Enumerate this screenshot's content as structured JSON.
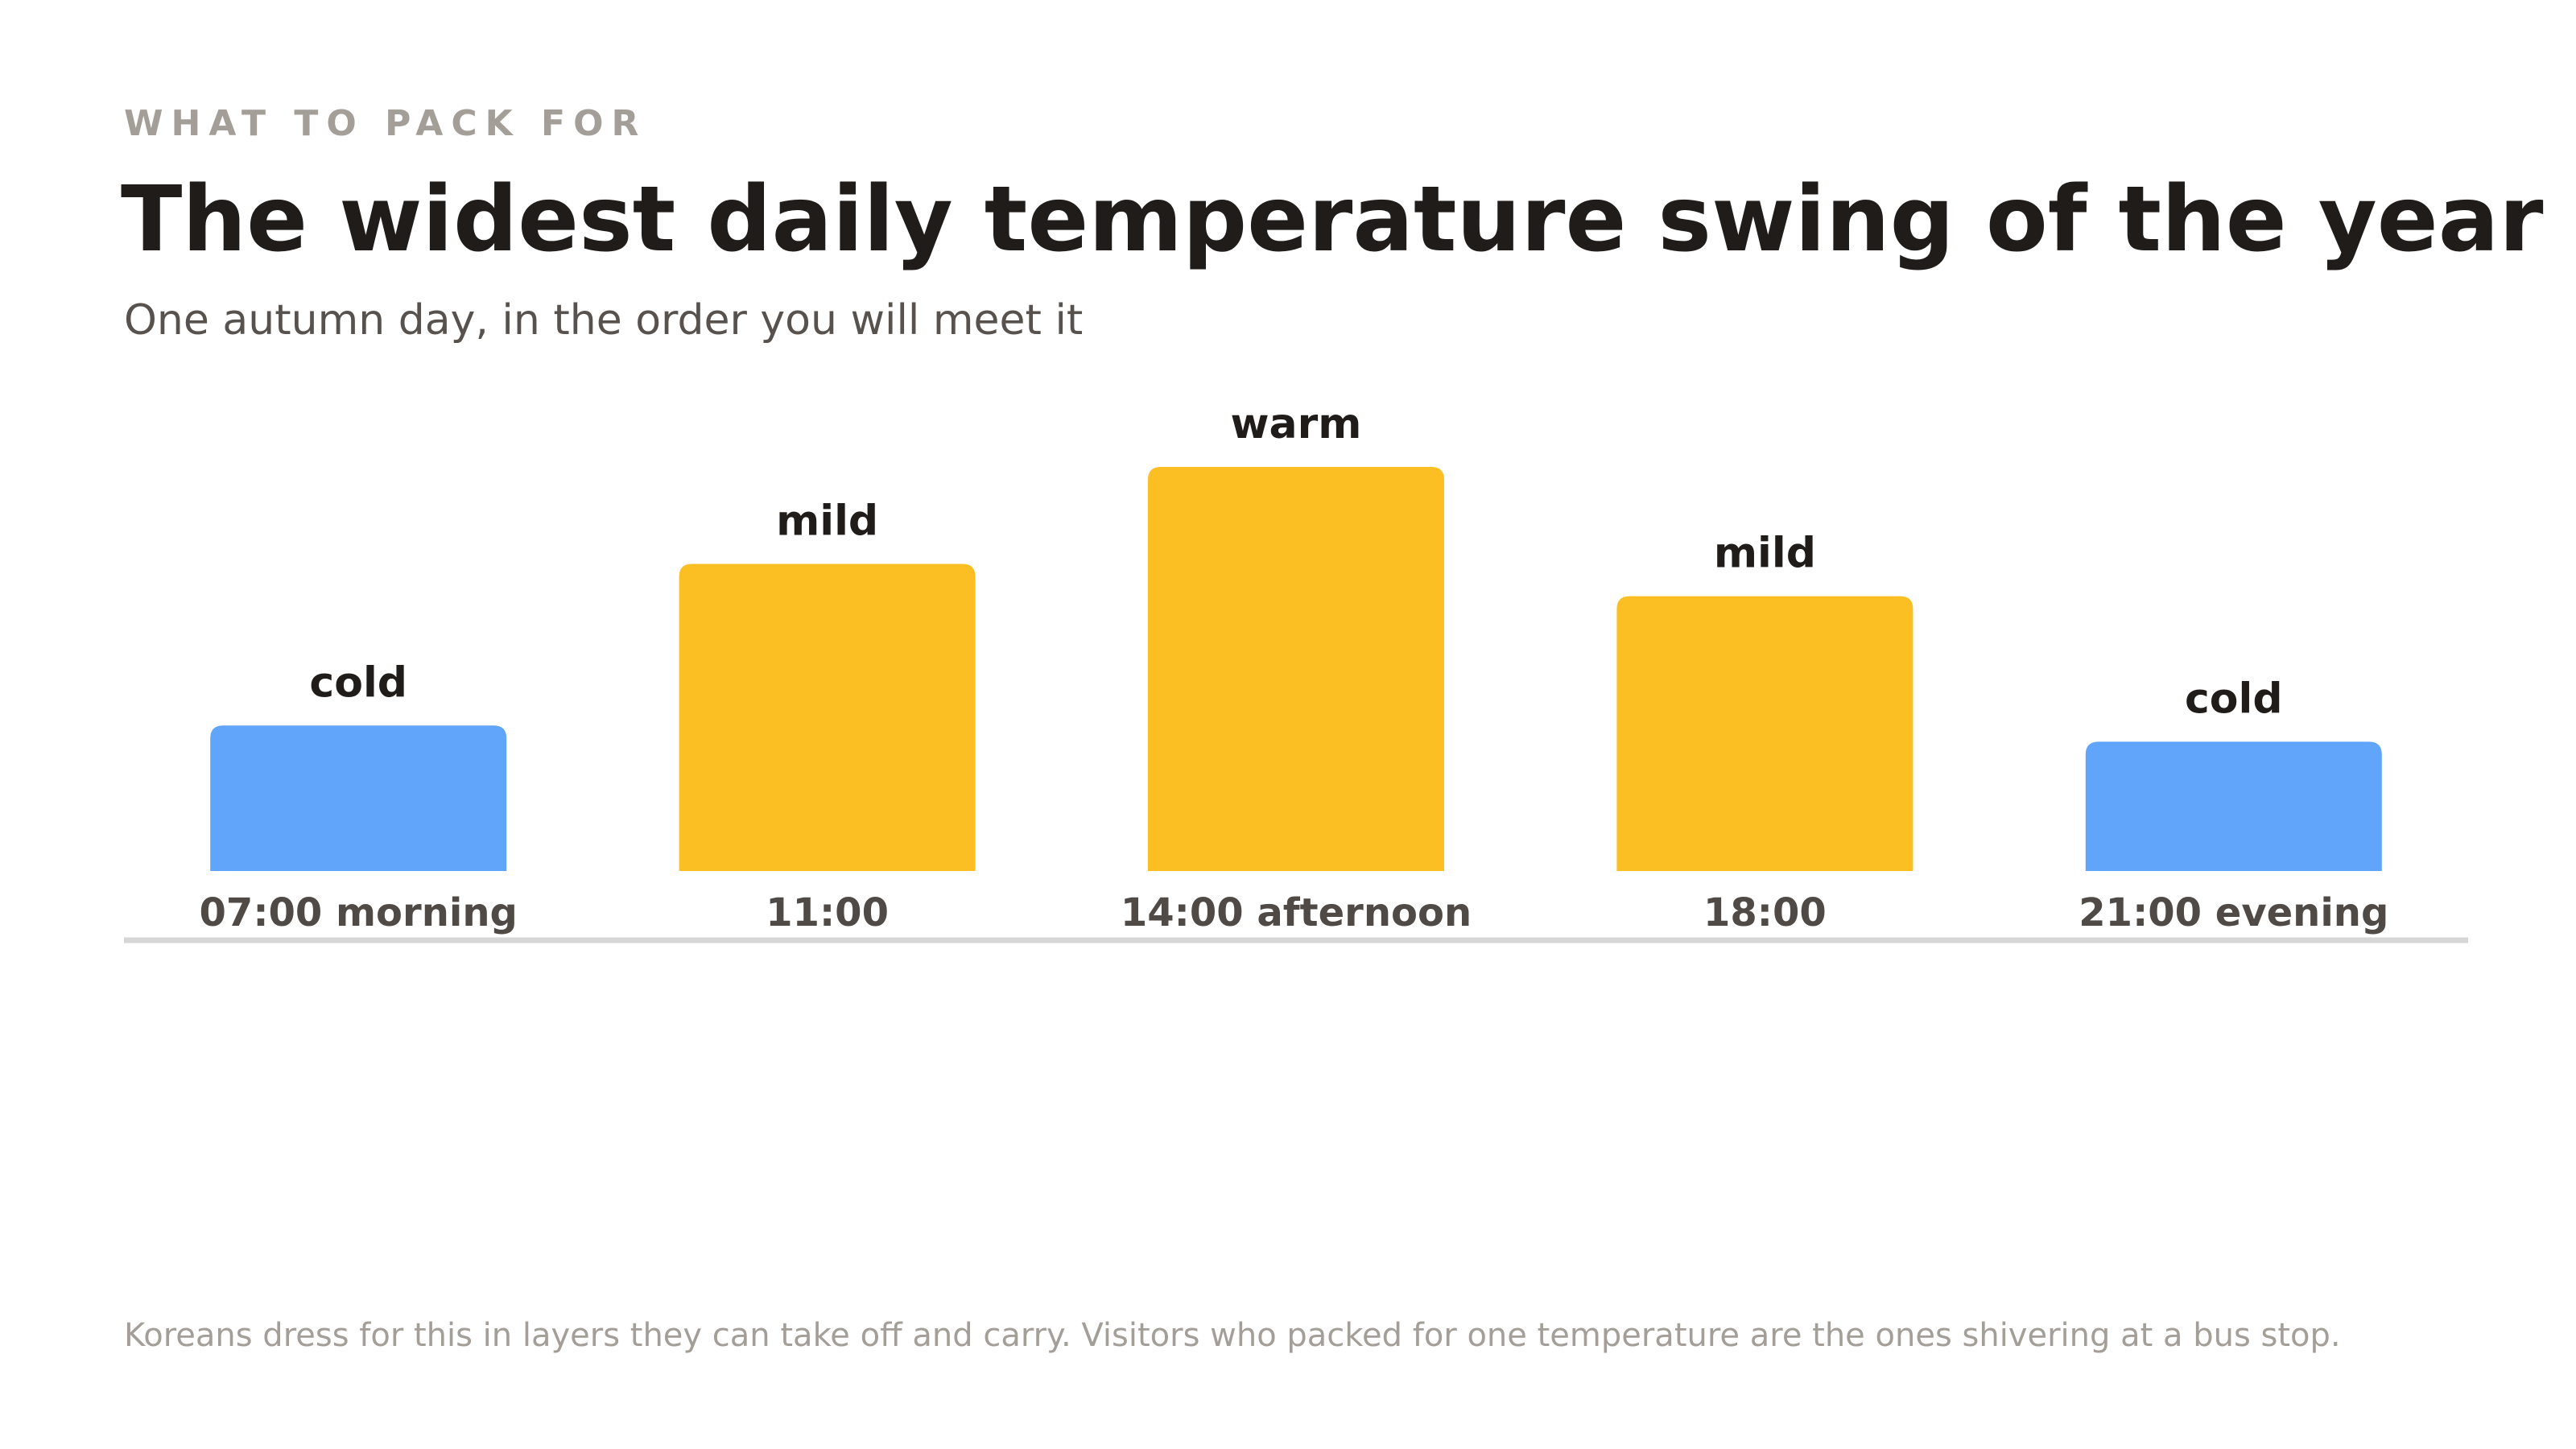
{
  "eyebrow": "WHAT TO PACK FOR",
  "title": "The widest daily temperature swing of the year",
  "subtitle": "One autumn day, in the order you will meet it",
  "footnote": "Koreans dress for this in layers they can take off and carry. Visitors who packed for one temperature are the ones shivering at a bus stop.",
  "colors": {
    "cold": "#60a5fa",
    "warm_mild": "#fbbf24",
    "value_label": "#1f1c1a",
    "category_label": "#4f4a45",
    "baseline": "#d6d6d6"
  },
  "chart_data": {
    "type": "bar",
    "title": "",
    "xlabel": "",
    "ylabel": "",
    "categories": [
      "07:00 morning",
      "11:00",
      "14:00 afternoon",
      "18:00",
      "21:00 evening"
    ],
    "values": [
      1.8,
      3.8,
      5.0,
      3.4,
      1.6
    ],
    "bar_labels": [
      "cold",
      "mild",
      "warm",
      "mild",
      "cold"
    ],
    "bar_color_keys": [
      "cold",
      "warm_mild",
      "warm_mild",
      "warm_mild",
      "cold"
    ],
    "ylim": [
      0,
      5
    ],
    "grid": false,
    "legend": "none"
  }
}
